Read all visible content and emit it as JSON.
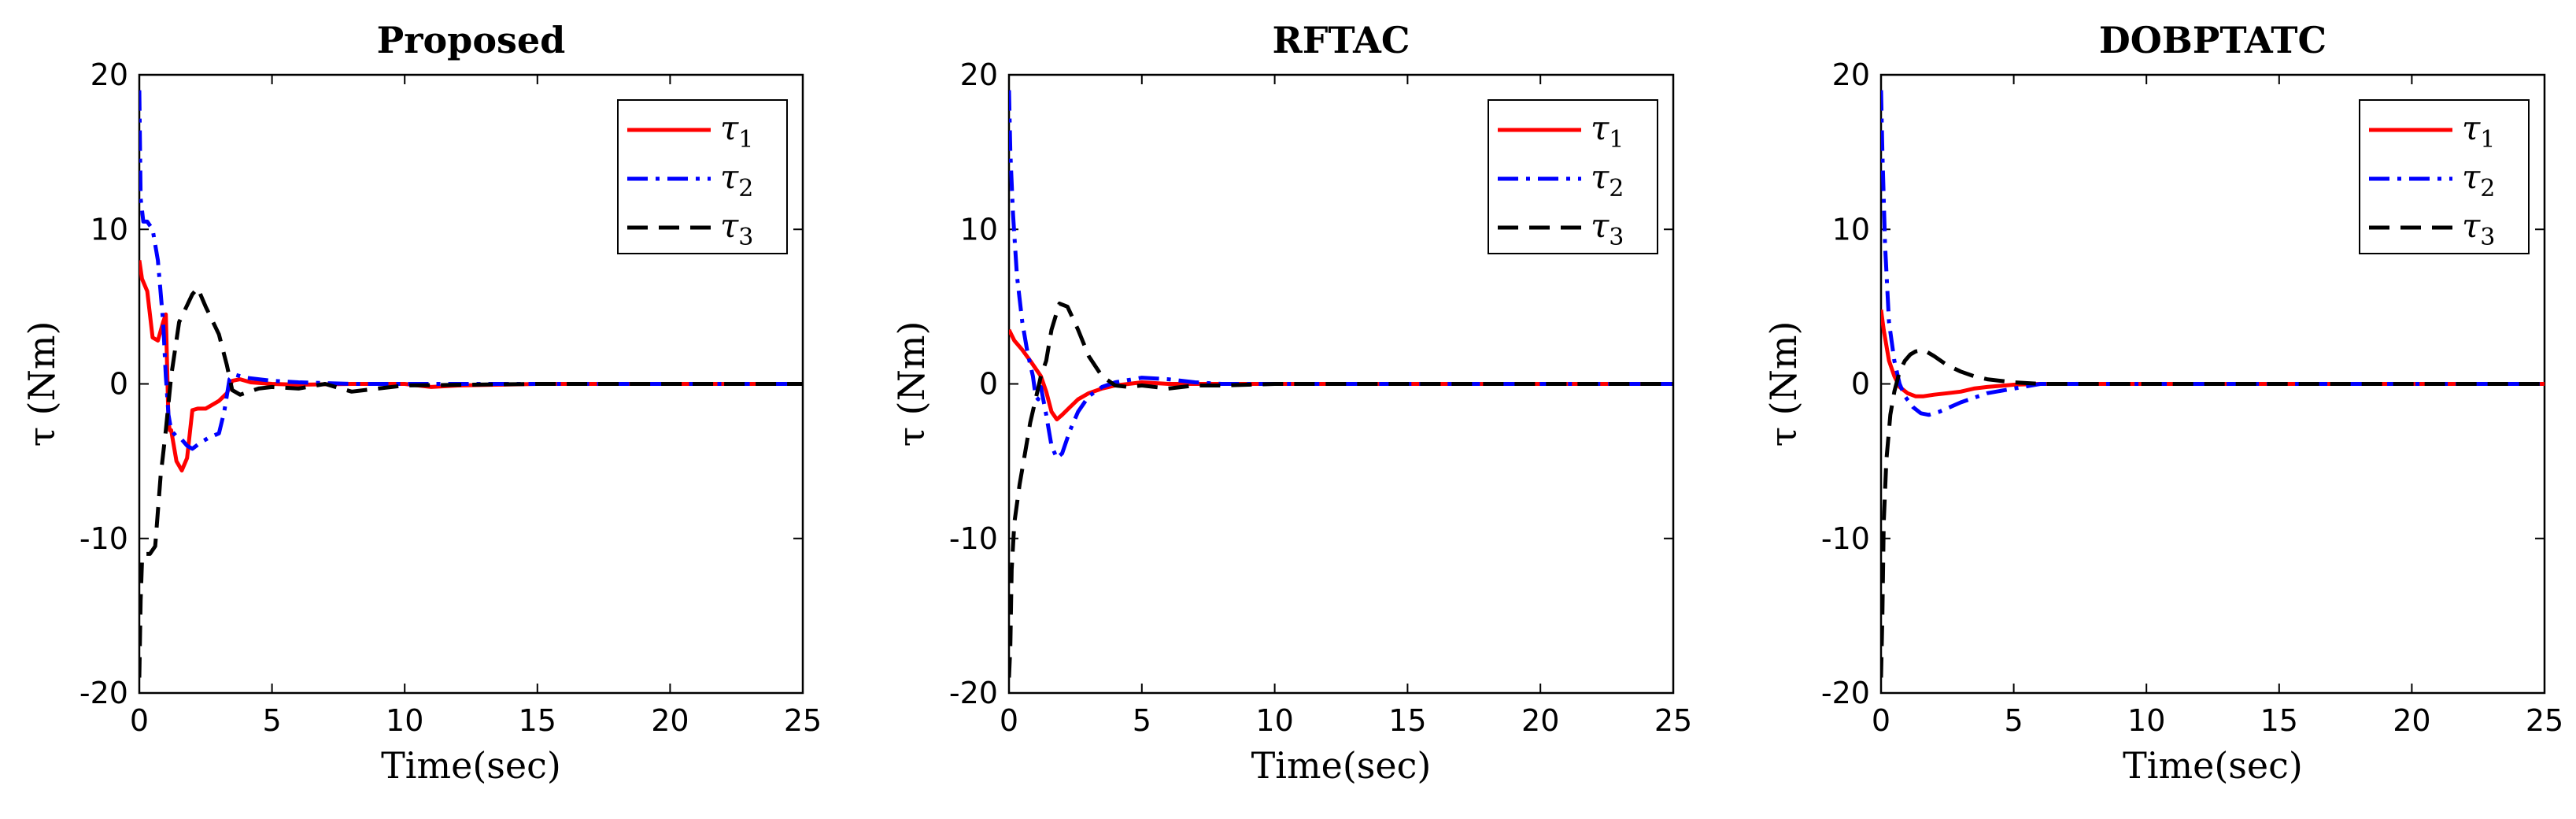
{
  "chart_data": [
    {
      "type": "line",
      "title": "Proposed",
      "xlabel": "Time(sec)",
      "ylabel": "τ (Nm)",
      "xlim": [
        0,
        25
      ],
      "ylim": [
        -20,
        20
      ],
      "xticks": [
        0,
        5,
        10,
        15,
        20,
        25
      ],
      "yticks": [
        20,
        10,
        0,
        -10,
        -20
      ],
      "legend": "top-right",
      "series": [
        {
          "name": "τ1",
          "sub": "1",
          "color": "#ff0000",
          "style": "solid",
          "x": [
            0,
            0.1,
            0.3,
            0.5,
            0.7,
            0.9,
            1.0,
            1.05,
            1.1,
            1.15,
            1.2,
            1.4,
            1.6,
            1.8,
            2.0,
            2.2,
            2.5,
            3.0,
            3.3,
            3.5,
            3.8,
            4.2,
            5,
            6,
            8,
            10,
            11,
            12,
            15,
            20,
            25
          ],
          "y": [
            8.0,
            6.8,
            6.0,
            3.0,
            2.8,
            4.0,
            4.5,
            1.0,
            -2.5,
            -3.0,
            -3.0,
            -5.0,
            -5.6,
            -4.8,
            -1.7,
            -1.6,
            -1.6,
            -1.1,
            -0.6,
            0.2,
            0.3,
            0.1,
            0.0,
            -0.05,
            0.0,
            0.0,
            -0.2,
            -0.1,
            0.0,
            0.0,
            0.0
          ]
        },
        {
          "name": "τ2",
          "sub": "2",
          "color": "#0000ff",
          "style": "dashdot",
          "x": [
            0,
            0.05,
            0.15,
            0.3,
            0.5,
            0.7,
            0.9,
            1.0,
            1.1,
            1.2,
            1.4,
            1.6,
            1.8,
            2.0,
            2.3,
            2.6,
            3.0,
            3.2,
            3.4,
            3.6,
            4.0,
            5,
            6,
            8,
            10,
            15,
            20,
            25
          ],
          "y": [
            19.0,
            12.0,
            10.5,
            10.5,
            10.0,
            8.0,
            4.0,
            0.5,
            -2.0,
            -3.0,
            -3.4,
            -3.6,
            -4.0,
            -4.2,
            -3.8,
            -3.5,
            -3.2,
            -1.8,
            0.3,
            0.6,
            0.4,
            0.2,
            0.1,
            0.0,
            0.0,
            0.0,
            0.0,
            0.0
          ]
        },
        {
          "name": "τ3",
          "sub": "3",
          "color": "#000000",
          "style": "dashed",
          "x": [
            0,
            0.05,
            0.1,
            0.2,
            0.4,
            0.6,
            0.8,
            1.0,
            1.2,
            1.5,
            2.0,
            2.2,
            2.5,
            3.0,
            3.3,
            3.5,
            3.8,
            4.5,
            5,
            6,
            7,
            8,
            10,
            15,
            20,
            25
          ],
          "y": [
            -19.0,
            -14.0,
            -11.5,
            -11.0,
            -11.0,
            -10.5,
            -6.0,
            -3.0,
            0.5,
            4.0,
            5.8,
            6.2,
            5.0,
            3.2,
            1.2,
            -0.4,
            -0.7,
            -0.3,
            -0.2,
            -0.3,
            0.0,
            -0.5,
            -0.1,
            0.0,
            0.0,
            0.0
          ]
        }
      ]
    },
    {
      "type": "line",
      "title": "RFTAC",
      "xlabel": "Time(sec)",
      "ylabel": "τ (Nm)",
      "xlim": [
        0,
        25
      ],
      "ylim": [
        -20,
        20
      ],
      "xticks": [
        0,
        5,
        10,
        15,
        20,
        25
      ],
      "yticks": [
        20,
        10,
        0,
        -10,
        -20
      ],
      "legend": "top-right",
      "series": [
        {
          "name": "τ1",
          "sub": "1",
          "color": "#ff0000",
          "style": "solid",
          "x": [
            0,
            0.2,
            0.5,
            0.8,
            1.0,
            1.2,
            1.4,
            1.6,
            1.8,
            2.0,
            2.3,
            2.6,
            3.0,
            3.5,
            4.0,
            5,
            6,
            8,
            10,
            15,
            20,
            25
          ],
          "y": [
            3.5,
            2.8,
            2.2,
            1.5,
            1.0,
            0.5,
            -0.5,
            -1.8,
            -2.3,
            -2.0,
            -1.5,
            -1.0,
            -0.6,
            -0.3,
            -0.1,
            0.1,
            0.0,
            0.0,
            0.0,
            0.0,
            0.0,
            0.0
          ]
        },
        {
          "name": "τ2",
          "sub": "2",
          "color": "#0000ff",
          "style": "dashdot",
          "x": [
            0,
            0.05,
            0.15,
            0.3,
            0.5,
            0.7,
            0.9,
            1.0,
            1.1,
            1.2,
            1.4,
            1.6,
            1.8,
            2.0,
            2.3,
            2.6,
            3.0,
            3.5,
            4.0,
            5,
            5.5,
            6,
            7,
            8,
            10,
            15,
            20,
            25
          ],
          "y": [
            19.0,
            15.0,
            11.0,
            7.0,
            4.0,
            2.0,
            0.5,
            -0.8,
            -1.0,
            -0.2,
            -2.0,
            -4.0,
            -4.8,
            -4.5,
            -3.0,
            -1.8,
            -0.8,
            -0.2,
            0.1,
            0.4,
            0.35,
            0.3,
            0.1,
            0.0,
            0.0,
            0.0,
            0.0,
            0.0
          ]
        },
        {
          "name": "τ3",
          "sub": "3",
          "color": "#000000",
          "style": "dashed",
          "x": [
            0,
            0.05,
            0.1,
            0.2,
            0.4,
            0.6,
            0.8,
            1.0,
            1.2,
            1.4,
            1.6,
            1.9,
            2.2,
            2.6,
            3.0,
            3.5,
            4.0,
            4.5,
            5,
            6,
            7,
            8,
            10,
            15,
            20,
            25
          ],
          "y": [
            -19.0,
            -17.0,
            -12.0,
            -9.0,
            -6.5,
            -4.5,
            -2.5,
            -1.0,
            0.5,
            1.5,
            3.5,
            5.2,
            5.0,
            3.5,
            1.8,
            0.5,
            -0.1,
            -0.2,
            -0.1,
            -0.3,
            -0.1,
            -0.1,
            0.0,
            0.0,
            0.0,
            0.0
          ]
        }
      ]
    },
    {
      "type": "line",
      "title": "DOBPTATC",
      "xlabel": "Time(sec)",
      "ylabel": "τ (Nm)",
      "xlim": [
        0,
        25
      ],
      "ylim": [
        -20,
        20
      ],
      "xticks": [
        0,
        5,
        10,
        15,
        20,
        25
      ],
      "yticks": [
        20,
        10,
        0,
        -10,
        -20
      ],
      "legend": "top-right",
      "series": [
        {
          "name": "τ1",
          "sub": "1",
          "color": "#ff0000",
          "style": "solid",
          "x": [
            0,
            0.1,
            0.3,
            0.5,
            0.7,
            1.0,
            1.3,
            1.6,
            2.0,
            2.5,
            3.0,
            3.5,
            4.0,
            5,
            6,
            8,
            10,
            15,
            20,
            25
          ],
          "y": [
            4.8,
            3.5,
            1.5,
            0.5,
            -0.2,
            -0.6,
            -0.8,
            -0.8,
            -0.7,
            -0.6,
            -0.5,
            -0.3,
            -0.2,
            -0.05,
            0.0,
            0.0,
            0.0,
            0.0,
            0.0,
            0.0
          ]
        },
        {
          "name": "τ2",
          "sub": "2",
          "color": "#0000ff",
          "style": "dashdot",
          "x": [
            0,
            0.05,
            0.15,
            0.3,
            0.5,
            0.7,
            0.9,
            1.2,
            1.5,
            1.8,
            2.2,
            2.6,
            3.0,
            3.5,
            4.0,
            5,
            6,
            8,
            10,
            15,
            20,
            25
          ],
          "y": [
            19.0,
            15.0,
            9.0,
            4.0,
            1.5,
            0.0,
            -0.8,
            -1.5,
            -1.9,
            -2.0,
            -1.8,
            -1.5,
            -1.2,
            -0.9,
            -0.6,
            -0.3,
            0.0,
            0.0,
            0.0,
            0.0,
            0.0,
            0.0
          ]
        },
        {
          "name": "τ3",
          "sub": "3",
          "color": "#000000",
          "style": "dashed",
          "x": [
            0,
            0.05,
            0.1,
            0.2,
            0.35,
            0.5,
            0.7,
            0.9,
            1.1,
            1.3,
            1.6,
            2.0,
            2.5,
            3.0,
            3.5,
            4.0,
            5,
            6,
            8,
            10,
            15,
            20,
            25
          ],
          "y": [
            -19.0,
            -15.0,
            -9.0,
            -5.0,
            -2.0,
            -0.5,
            0.8,
            1.5,
            1.9,
            2.1,
            2.2,
            1.8,
            1.2,
            0.8,
            0.5,
            0.3,
            0.1,
            0.0,
            0.0,
            0.0,
            0.0,
            0.0,
            0.0
          ]
        }
      ]
    }
  ]
}
